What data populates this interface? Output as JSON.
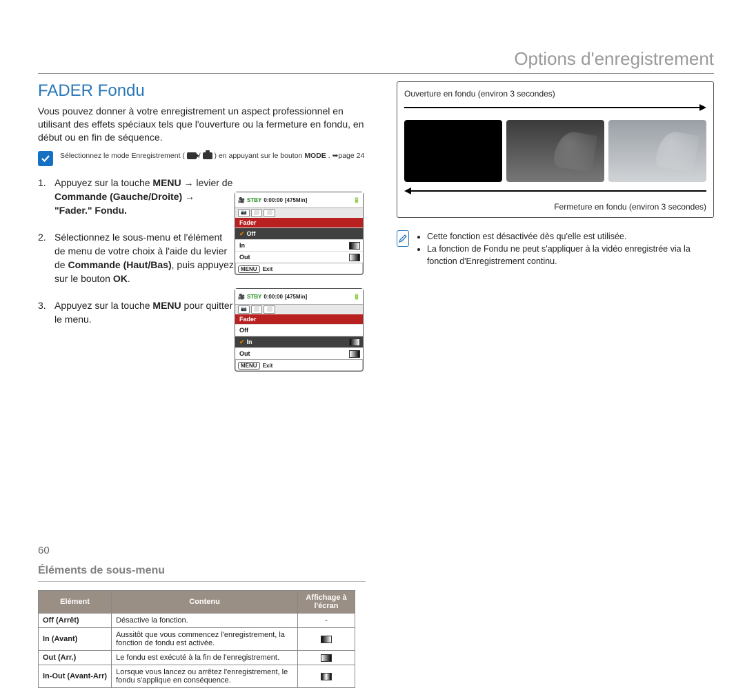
{
  "chapter_title": "Options d'enregistrement",
  "section_title": "FADER Fondu",
  "intro_text": "Vous pouvez donner à votre enregistrement un aspect professionnel en utilisant des effets spéciaux tels que l'ouverture ou la fermeture en fondu, en début ou en fin de séquence.",
  "mode_note_prefix": "Sélectionnez le mode Enregistrement (",
  "mode_note_sep": " / ",
  "mode_note_suffix": ") en appuyant sur le bouton ",
  "mode_note_bold": "MODE",
  "mode_note_ref": ". ➥page 24",
  "steps": [
    {
      "num": "1.",
      "html": "Appuyez sur la touche <b>MENU</b> → levier de <b>Commande (Gauche/Droite)</b> → <b>\"Fader.\" Fondu.</b>"
    },
    {
      "num": "2.",
      "html": "Sélectionnez le sous-menu et l'élément de menu de votre choix à l'aide du levier de <b>Commande (Haut/Bas)</b>, puis appuyez sur le bouton <b>OK</b>."
    },
    {
      "num": "3.",
      "html": "Appuyez sur la touche <b>MENU</b> pour quitter le menu."
    }
  ],
  "sub_heading": "Éléments de sous-menu",
  "table": {
    "columns": [
      "Elément",
      "Contenu",
      "Affichage à l'écran"
    ],
    "rows": [
      {
        "label": "Off (Arrêt)",
        "content": "Désactive la fonction.",
        "display": "-",
        "glyph": null
      },
      {
        "label": "In (Avant)",
        "content": "Aussitôt que vous commencez l'enregistrement, la fonction de fondu est activée.",
        "display": "",
        "glyph": "in"
      },
      {
        "label": "Out (Arr.)",
        "content": "Le fondu est exécuté à la fin de l'enregistrement.",
        "display": "",
        "glyph": "out"
      },
      {
        "label": "In-Out (Avant-Arr)",
        "content": "Lorsque vous lancez ou arrêtez l'enregistrement, le fondu s'applique en conséquence.",
        "display": "",
        "glyph": "io"
      }
    ]
  },
  "lcd": {
    "stby": "STBY",
    "time": "0:00:00",
    "remain": "[475Min]",
    "title": "Fader",
    "rows": [
      "Off",
      "In",
      "Out"
    ],
    "selected_a": 0,
    "selected_b": 1,
    "foot_menu": "MENU",
    "foot_exit": "Exit"
  },
  "figure": {
    "caption_top": "Ouverture en fondu (environ 3 secondes)",
    "caption_bottom": "Fermeture en fondu (environ 3 secondes)"
  },
  "right_notes": [
    "Cette fonction est désactivée dès qu'elle est utilisée.",
    "La fonction de Fondu ne peut s'appliquer à la vidéo enregistrée via la fonction d'Enregistrement continu."
  ],
  "page_number": "60",
  "colors": {
    "accent_blue": "#2a77b8",
    "icon_blue": "#1570c4",
    "table_header": "#9a8f84",
    "fader_title": "#b92020",
    "grey_text": "#808080"
  }
}
